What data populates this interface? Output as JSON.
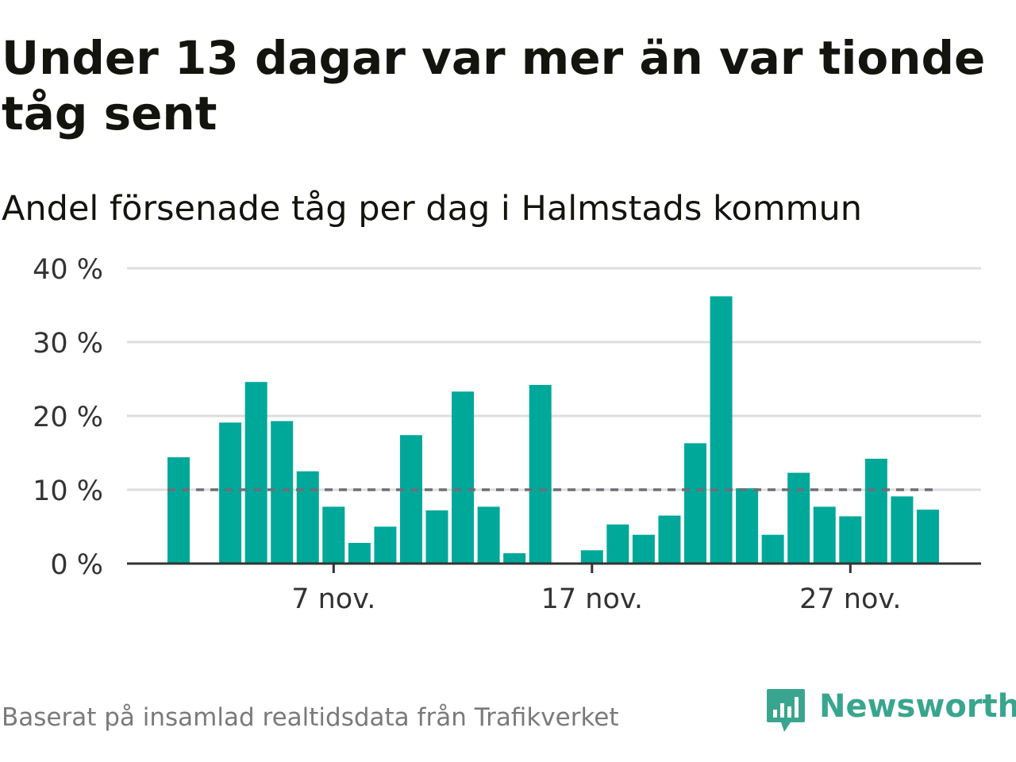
{
  "title": "Under 13 dagar var mer än var tionde tåg sent",
  "subtitle": "Andel försenade tåg per dag i Halmstads kommun",
  "source": "Baserat på insamlad realtidsdata från Trafikverket",
  "logo": {
    "name": "Newsworthy",
    "icon": "newsworthy-logo-icon",
    "color": "#3aa58e"
  },
  "colors": {
    "bar": "#00a89a",
    "reference_line": "#6e6e78",
    "grid": "#dddddd",
    "axis": "#333333"
  },
  "chart_data": {
    "type": "bar",
    "title": "Under 13 dagar var mer än var tionde tåg sent",
    "subtitle": "Andel försenade tåg per dag i Halmstads kommun",
    "xlabel": "",
    "ylabel": "",
    "ylim": [
      0,
      40
    ],
    "y_ticks": [
      0,
      10,
      20,
      30,
      40
    ],
    "y_tick_labels": [
      "0 %",
      "10 %",
      "20 %",
      "30 %",
      "40 %"
    ],
    "x_ticks": [
      {
        "day": 7,
        "label": "7 nov."
      },
      {
        "day": 17,
        "label": "17 nov."
      },
      {
        "day": 27,
        "label": "27 nov."
      }
    ],
    "x_range_days": [
      1,
      30
    ],
    "reference_line": {
      "value": 10,
      "style": "dashed"
    },
    "grid": true,
    "legend": "none",
    "categories": [
      "1 nov.",
      "2 nov.",
      "3 nov.",
      "4 nov.",
      "5 nov.",
      "6 nov.",
      "7 nov.",
      "8 nov.",
      "9 nov.",
      "10 nov.",
      "11 nov.",
      "12 nov.",
      "13 nov.",
      "14 nov.",
      "15 nov.",
      "16 nov.",
      "17 nov.",
      "18 nov.",
      "19 nov.",
      "20 nov.",
      "21 nov.",
      "22 nov.",
      "23 nov.",
      "24 nov.",
      "25 nov.",
      "26 nov.",
      "27 nov.",
      "28 nov.",
      "29 nov.",
      "30 nov."
    ],
    "days": [
      1,
      2,
      3,
      4,
      5,
      6,
      7,
      8,
      9,
      10,
      11,
      12,
      13,
      14,
      15,
      16,
      17,
      18,
      19,
      20,
      21,
      22,
      23,
      24,
      25,
      26,
      27,
      28,
      29,
      30
    ],
    "values": [
      14.4,
      null,
      19.1,
      24.6,
      19.3,
      12.5,
      7.7,
      2.8,
      5.0,
      17.4,
      7.2,
      23.3,
      7.7,
      1.4,
      24.2,
      null,
      1.8,
      5.3,
      3.9,
      6.5,
      16.3,
      36.2,
      10.2,
      3.9,
      12.3,
      7.7,
      6.4,
      14.2,
      9.1,
      7.3
    ]
  }
}
